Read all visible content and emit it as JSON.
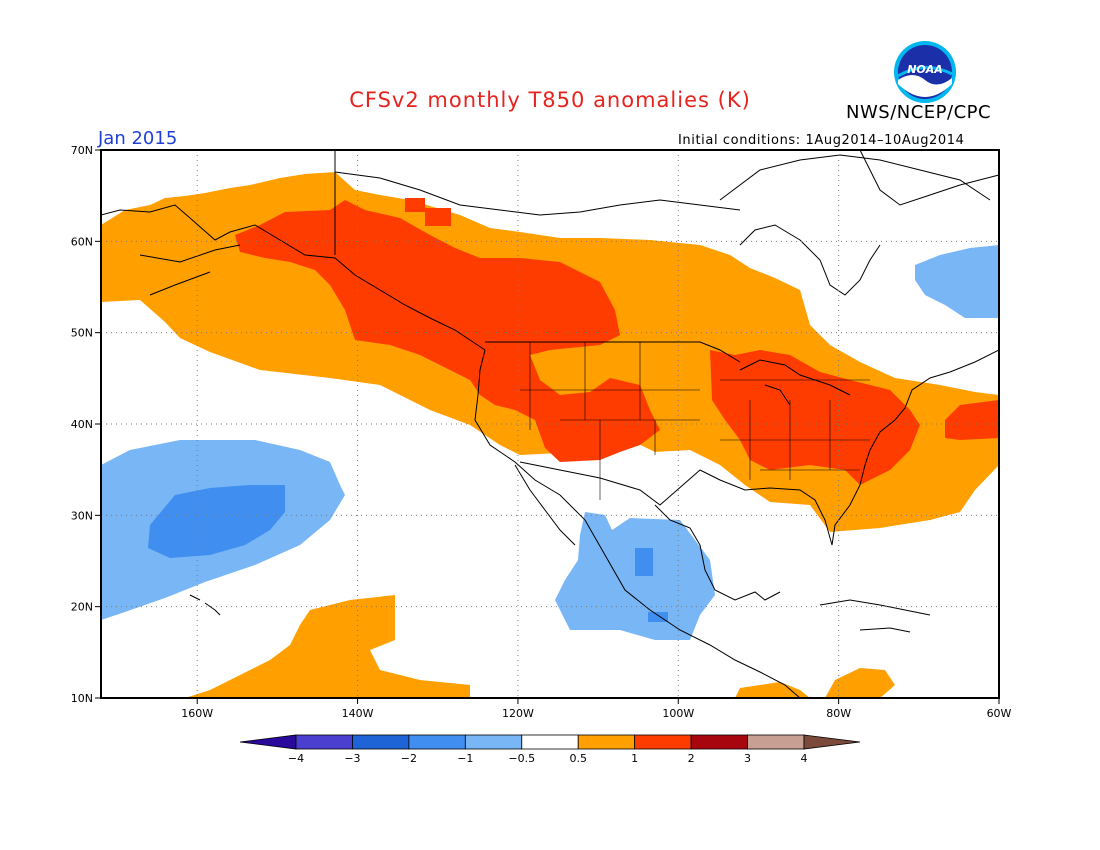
{
  "header": {
    "title": "CFSv2 monthly T850 anomalies (K)",
    "agency": "NWS/NCEP/CPC",
    "period": "Jan 2015",
    "initial_conditions": "Initial conditions: 1Aug2014–10Aug2014",
    "logo_text": "NOAA"
  },
  "map": {
    "lon_range": [
      -172,
      -60
    ],
    "lat_range": [
      10,
      70
    ],
    "lat_ticks": [
      {
        "value": 70,
        "label": "70N"
      },
      {
        "value": 60,
        "label": "60N"
      },
      {
        "value": 50,
        "label": "50N"
      },
      {
        "value": 40,
        "label": "40N"
      },
      {
        "value": 30,
        "label": "30N"
      },
      {
        "value": 20,
        "label": "20N"
      },
      {
        "value": 10,
        "label": "10N"
      }
    ],
    "lon_ticks": [
      {
        "value": -160,
        "label": "160W"
      },
      {
        "value": -140,
        "label": "140W"
      },
      {
        "value": -120,
        "label": "120W"
      },
      {
        "value": -100,
        "label": "100W"
      },
      {
        "value": -80,
        "label": "80W"
      },
      {
        "value": -60,
        "label": "60W"
      }
    ],
    "grid": "dotted"
  },
  "colorbar": {
    "labels": [
      "−4",
      "−3",
      "−2",
      "−1",
      "−0.5",
      "0.5",
      "1",
      "2",
      "3",
      "4"
    ],
    "colors": [
      "#2a0a9c",
      "#4b3fd0",
      "#1e64d6",
      "#3f8ef0",
      "#79b6f5",
      "#ffffff",
      "#ff9f00",
      "#ff3c00",
      "#a8060f",
      "#c89f93",
      "#7b4a3a"
    ]
  },
  "colors": {
    "warm1": "#ff9f00",
    "warm2": "#ff3c00",
    "cool1": "#79b6f5",
    "cool2": "#3f8ef0",
    "title": "#e8231e",
    "period": "#1f3fd8"
  }
}
